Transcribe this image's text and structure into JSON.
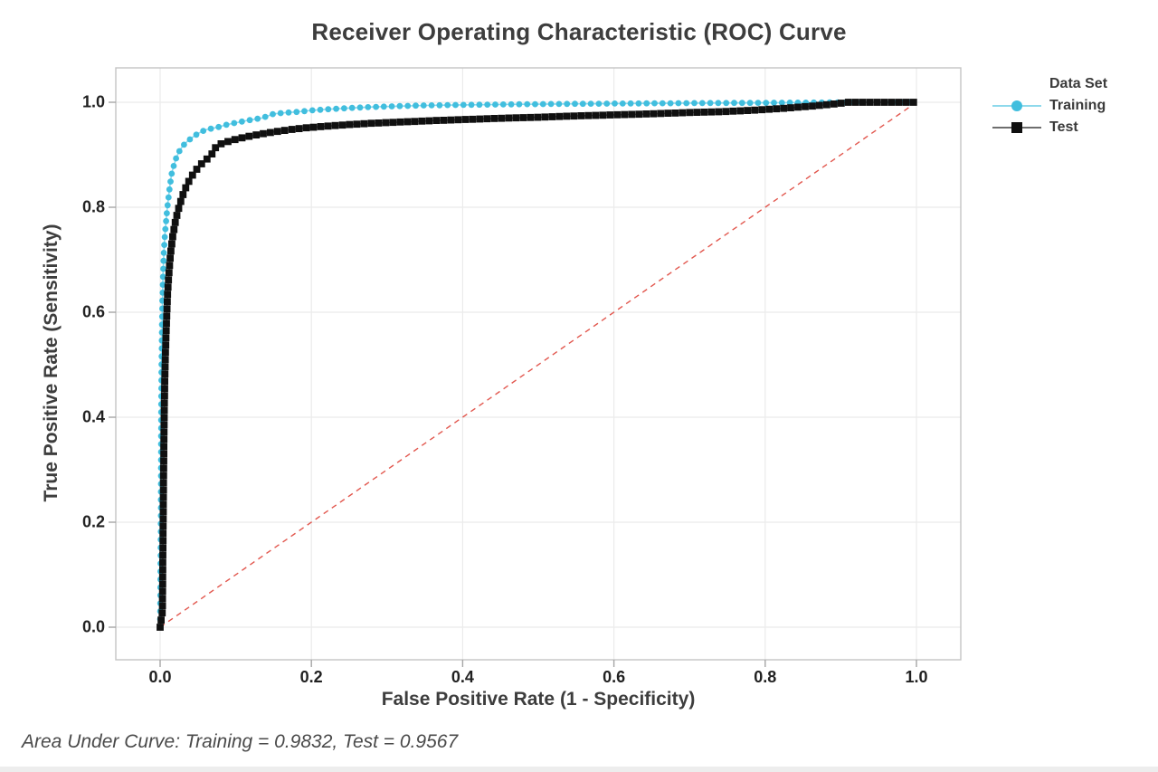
{
  "chart_data": {
    "type": "line",
    "title": "Receiver Operating Characteristic (ROC) Curve",
    "xlabel": "False Positive Rate (1 - Specificity)",
    "ylabel": "True Positive Rate (Sensitivity)",
    "xlim": [
      0,
      1
    ],
    "ylim": [
      0,
      1
    ],
    "grid": true,
    "x_ticks": {
      "values": [
        0,
        0.2,
        0.4,
        0.6,
        0.8,
        1.0
      ],
      "labels": [
        "0.0",
        "0.2",
        "0.4",
        "0.6",
        "0.8",
        "1.0"
      ]
    },
    "y_ticks": {
      "values": [
        0,
        0.2,
        0.4,
        0.6,
        0.8,
        1.0
      ],
      "labels": [
        "0.0",
        "0.2",
        "0.4",
        "0.6",
        "0.8",
        "1.0"
      ]
    },
    "annotation": "Area Under Curve: Training = 0.9832, Test = 0.9567",
    "auc": {
      "training": 0.9832,
      "test": 0.9567
    },
    "reference_line": {
      "from": [
        0,
        0
      ],
      "to": [
        1,
        1
      ],
      "style": "dashed",
      "color": "#e2574e"
    },
    "legend": {
      "title": "Data Set",
      "position": "right",
      "entries": [
        {
          "label": "Training",
          "marker": "circle",
          "color": "#41bede",
          "line_color": "#8ed9ec"
        },
        {
          "label": "Test",
          "marker": "square",
          "color": "#101010",
          "line_color": "#6e6e6e"
        }
      ]
    },
    "series": [
      {
        "name": "Training",
        "marker": "circle",
        "color": "#41bede",
        "line_color": "#8ed9ec",
        "points": [
          [
            0,
            0
          ],
          [
            0.001,
            0.2
          ],
          [
            0.0015,
            0.42
          ],
          [
            0.002,
            0.52
          ],
          [
            0.003,
            0.62
          ],
          [
            0.004,
            0.675
          ],
          [
            0.005,
            0.715
          ],
          [
            0.006,
            0.742
          ],
          [
            0.0075,
            0.768
          ],
          [
            0.009,
            0.792
          ],
          [
            0.011,
            0.818
          ],
          [
            0.013,
            0.842
          ],
          [
            0.015,
            0.862
          ],
          [
            0.018,
            0.879
          ],
          [
            0.021,
            0.893
          ],
          [
            0.025,
            0.906
          ],
          [
            0.03,
            0.917
          ],
          [
            0.036,
            0.9255
          ],
          [
            0.043,
            0.9335
          ],
          [
            0.05,
            0.9405
          ],
          [
            0.06,
            0.9475
          ],
          [
            0.075,
            0.952
          ],
          [
            0.09,
            0.958
          ],
          [
            0.105,
            0.9625
          ],
          [
            0.12,
            0.9665
          ],
          [
            0.135,
            0.97
          ],
          [
            0.15,
            0.978
          ],
          [
            0.165,
            0.98
          ],
          [
            0.18,
            0.9815
          ],
          [
            0.2,
            0.9845
          ],
          [
            0.22,
            0.9865
          ],
          [
            0.25,
            0.989
          ],
          [
            0.28,
            0.991
          ],
          [
            0.31,
            0.9925
          ],
          [
            0.35,
            0.994
          ],
          [
            0.4,
            0.995
          ],
          [
            0.46,
            0.996
          ],
          [
            0.52,
            0.9967
          ],
          [
            0.58,
            0.9973
          ],
          [
            0.65,
            0.998
          ],
          [
            0.72,
            0.9985
          ],
          [
            0.8,
            0.999
          ],
          [
            0.87,
            0.9995
          ],
          [
            0.92,
            1
          ],
          [
            1,
            1
          ]
        ]
      },
      {
        "name": "Test",
        "marker": "square",
        "color": "#101010",
        "line_color": "#6e6e6e",
        "points": [
          [
            0,
            0
          ],
          [
            0.003,
            0.03
          ],
          [
            0.0035,
            0.12
          ],
          [
            0.004,
            0.2
          ],
          [
            0.0045,
            0.28
          ],
          [
            0.005,
            0.35
          ],
          [
            0.0055,
            0.41
          ],
          [
            0.006,
            0.46
          ],
          [
            0.007,
            0.52
          ],
          [
            0.008,
            0.565
          ],
          [
            0.009,
            0.605
          ],
          [
            0.01,
            0.64
          ],
          [
            0.0115,
            0.672
          ],
          [
            0.013,
            0.7
          ],
          [
            0.015,
            0.726
          ],
          [
            0.017,
            0.748
          ],
          [
            0.02,
            0.771
          ],
          [
            0.023,
            0.79
          ],
          [
            0.027,
            0.81
          ],
          [
            0.031,
            0.8275
          ],
          [
            0.036,
            0.8445
          ],
          [
            0.042,
            0.8595
          ],
          [
            0.05,
            0.8755
          ],
          [
            0.058,
            0.8875
          ],
          [
            0.067,
            0.8975
          ],
          [
            0.075,
            0.918
          ],
          [
            0.088,
            0.9245
          ],
          [
            0.1,
            0.9295
          ],
          [
            0.115,
            0.9345
          ],
          [
            0.13,
            0.9385
          ],
          [
            0.15,
            0.9435
          ],
          [
            0.17,
            0.9475
          ],
          [
            0.19,
            0.951
          ],
          [
            0.22,
            0.9545
          ],
          [
            0.25,
            0.9575
          ],
          [
            0.28,
            0.96
          ],
          [
            0.32,
            0.9625
          ],
          [
            0.36,
            0.965
          ],
          [
            0.4,
            0.967
          ],
          [
            0.45,
            0.9695
          ],
          [
            0.5,
            0.9715
          ],
          [
            0.55,
            0.974
          ],
          [
            0.6,
            0.976
          ],
          [
            0.65,
            0.978
          ],
          [
            0.7,
            0.9805
          ],
          [
            0.74,
            0.982
          ],
          [
            0.78,
            0.9845
          ],
          [
            0.82,
            0.988
          ],
          [
            0.86,
            0.9925
          ],
          [
            0.89,
            0.9965
          ],
          [
            0.91,
            1
          ],
          [
            1,
            1
          ]
        ]
      }
    ],
    "colors": {
      "grid": "#ebebeb",
      "frame": "#c4c4c4",
      "tick": "#a6a6a6",
      "plot_background": "#ffffff"
    }
  }
}
